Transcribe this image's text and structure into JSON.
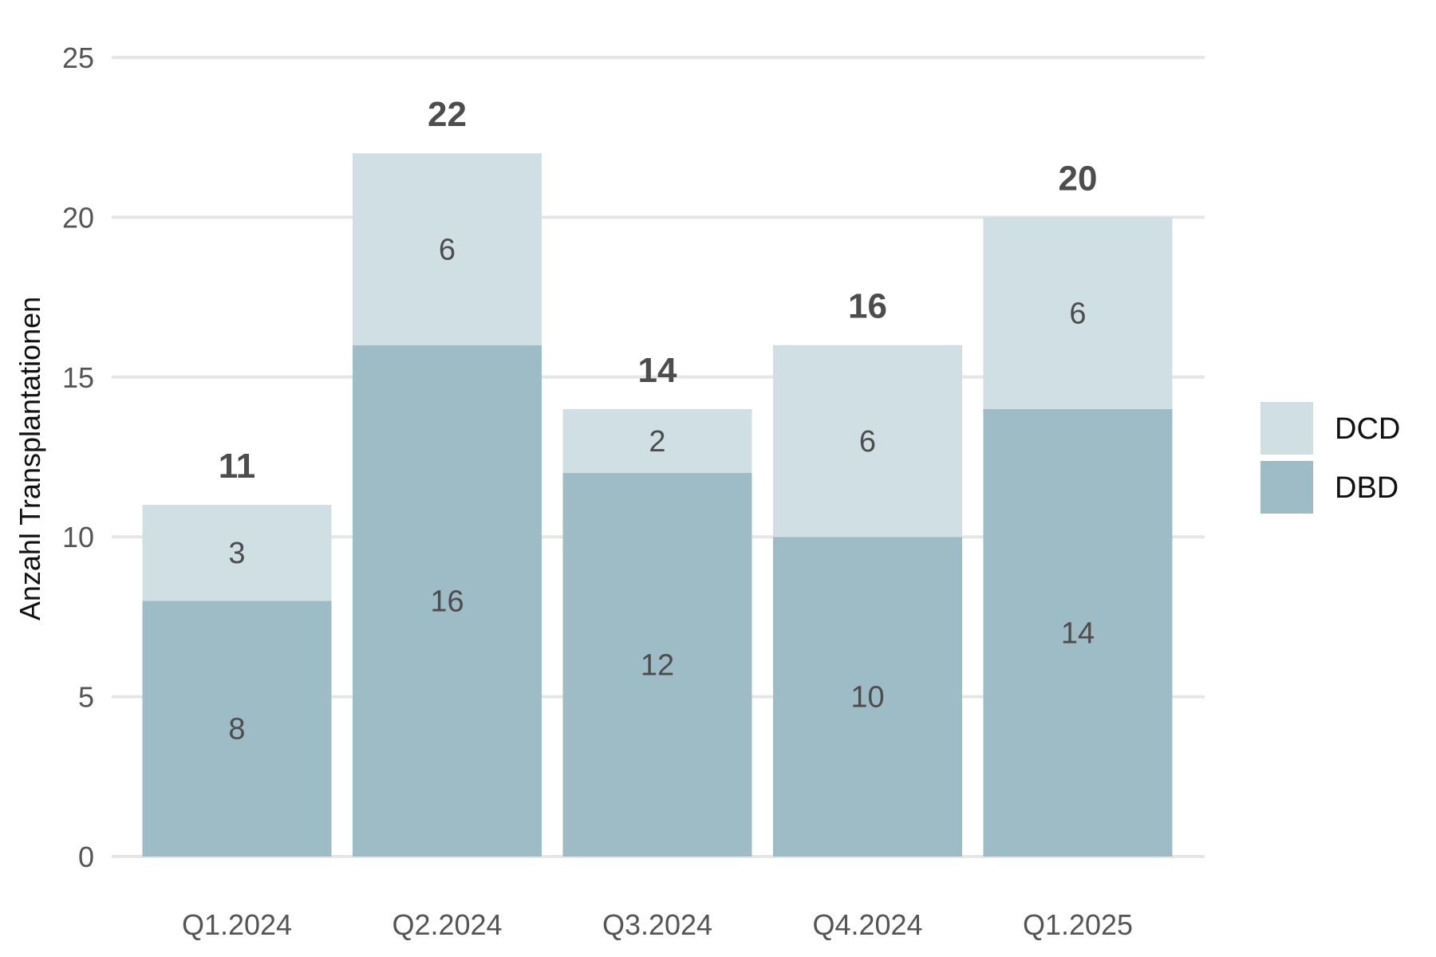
{
  "chart_data": {
    "type": "bar",
    "stacked": true,
    "title": "",
    "xlabel": "",
    "ylabel": "Anzahl Transplantationen",
    "categories": [
      "Q1.2024",
      "Q2.2024",
      "Q3.2024",
      "Q4.2024",
      "Q1.2025"
    ],
    "series": [
      {
        "name": "DBD",
        "values": [
          8,
          16,
          12,
          10,
          14
        ],
        "color": "#9dbcc5"
      },
      {
        "name": "DCD",
        "values": [
          3,
          6,
          2,
          6,
          6
        ],
        "color": "#cfdfe3"
      }
    ],
    "totals": [
      11,
      22,
      14,
      16,
      20
    ],
    "ylim": [
      0,
      25
    ],
    "yticks": [
      0,
      5,
      10,
      15,
      20,
      25
    ],
    "grid": true,
    "legend_position": "right",
    "legend_order": [
      "DCD",
      "DBD"
    ]
  }
}
